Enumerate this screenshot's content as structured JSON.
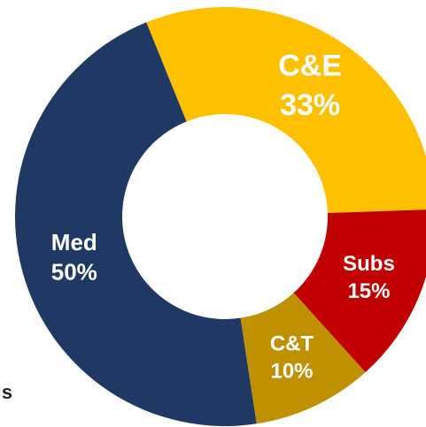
{
  "chart_data": {
    "type": "donut",
    "categories": [
      "C&E",
      "Subs",
      "C&T",
      "Med"
    ],
    "values": [
      33,
      15,
      10,
      50
    ],
    "value_labels": [
      "33%",
      "15%",
      "10%",
      "50%"
    ],
    "colors": [
      "#FFC000",
      "#C00000",
      "#BF9000",
      "#203864"
    ],
    "annotation": "s"
  }
}
